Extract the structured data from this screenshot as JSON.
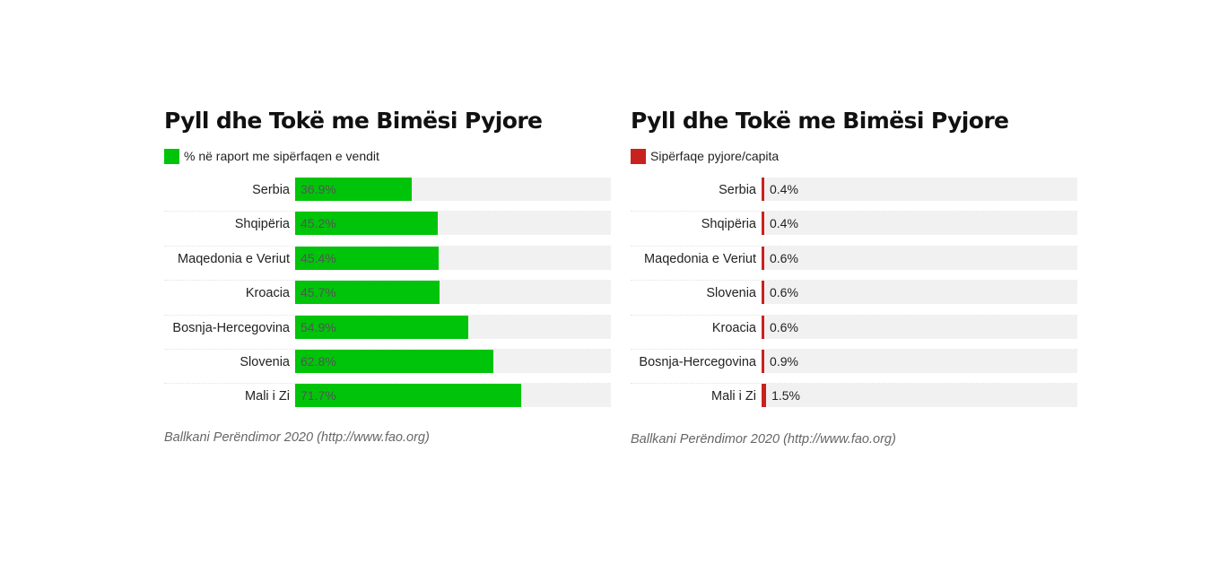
{
  "chart_data": [
    {
      "type": "bar",
      "orientation": "horizontal",
      "title": "Pyll dhe Tokë me Bimësi Pyjore",
      "legend": "% në raport me sipërfaqen e vendit",
      "color": "#00c40a",
      "categories": [
        "Serbia",
        "Shqipëria",
        "Maqedonia e Veriut",
        "Kroacia",
        "Bosnja-Hercegovina",
        "Slovenia",
        "Mali i Zi"
      ],
      "values": [
        36.9,
        45.2,
        45.4,
        45.7,
        54.9,
        62.8,
        71.7
      ],
      "value_labels": [
        "36.9%",
        "45.2%",
        "45.4%",
        "45.7%",
        "54.9%",
        "62.8%",
        "71.7%"
      ],
      "xlim": [
        0,
        100
      ],
      "source": "Ballkani Perëndimor 2020 (http://www.fao.org)"
    },
    {
      "type": "bar",
      "orientation": "horizontal",
      "title": "Pyll dhe Tokë me Bimësi Pyjore",
      "legend": "Sipërfaqe pyjore/capita",
      "color": "#c8221f",
      "categories": [
        "Serbia",
        "Shqipëria",
        "Maqedonia e Veriut",
        "Slovenia",
        "Kroacia",
        "Bosnja-Hercegovina",
        "Mali i Zi"
      ],
      "values": [
        0.4,
        0.4,
        0.6,
        0.6,
        0.6,
        0.9,
        1.5
      ],
      "value_labels": [
        "0.4%",
        "0.4%",
        "0.6%",
        "0.6%",
        "0.6%",
        "0.9%",
        "1.5%"
      ],
      "xlim": [
        0,
        100
      ],
      "source": "Ballkani Perëndimor 2020 (http://www.fao.org)"
    }
  ]
}
